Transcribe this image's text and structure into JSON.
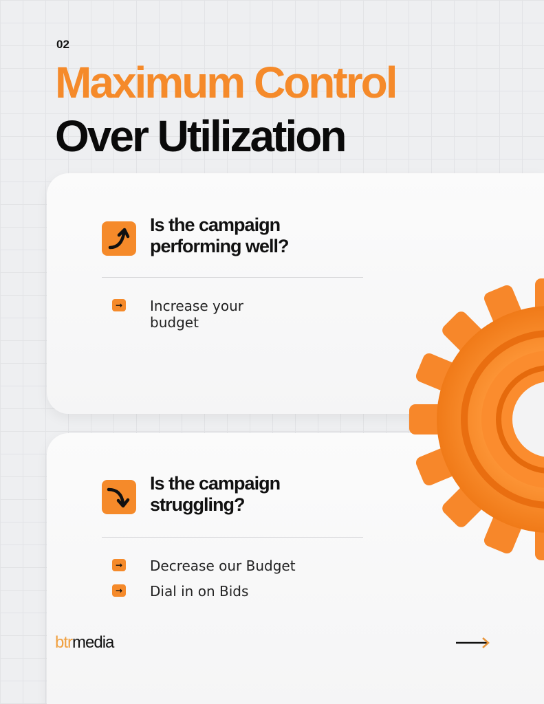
{
  "slide_number": "02",
  "title_line1": "Maximum Control",
  "title_line2": "Over Utilization",
  "cards": [
    {
      "icon": "arrow-curve-up-icon",
      "question": [
        "Is the campaign",
        "performing well?"
      ],
      "bullets": [
        "Increase your",
        "budget"
      ]
    },
    {
      "icon": "arrow-curve-down-icon",
      "question": [
        "Is the campaign",
        "struggling?"
      ],
      "bullets": [
        "Decrease our Budget",
        "Dial in on Bids"
      ]
    }
  ],
  "logo": {
    "part1": "btr",
    "part2": "media"
  },
  "colors": {
    "accent": "#f58a2a",
    "text": "#111111"
  }
}
